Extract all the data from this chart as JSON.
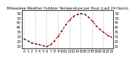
{
  "title": "Milwaukee Weather Outdoor Temperature per Hour (Last 24 Hours)",
  "hours": [
    0,
    1,
    2,
    3,
    4,
    5,
    6,
    7,
    8,
    9,
    10,
    11,
    12,
    13,
    14,
    15,
    16,
    17,
    18,
    19,
    20,
    21,
    22,
    23
  ],
  "temps": [
    28,
    26,
    24,
    23,
    22,
    21,
    20,
    22,
    26,
    31,
    37,
    43,
    48,
    52,
    54,
    55,
    54,
    51,
    47,
    42,
    38,
    35,
    32,
    30
  ],
  "line_color": "#dd0000",
  "marker_color": "#000000",
  "background_color": "#ffffff",
  "grid_color": "#888888",
  "ylim": [
    18,
    58
  ],
  "yticks": [
    20,
    25,
    30,
    35,
    40,
    45,
    50,
    55
  ],
  "grid_hours": [
    0,
    3,
    6,
    9,
    12,
    15,
    18,
    21
  ],
  "xlabel_every": 1,
  "ylabel_fontsize": 3.5,
  "xlabel_fontsize": 3.5,
  "title_fontsize": 3.8,
  "linewidth": 0.8,
  "markersize": 1.0
}
